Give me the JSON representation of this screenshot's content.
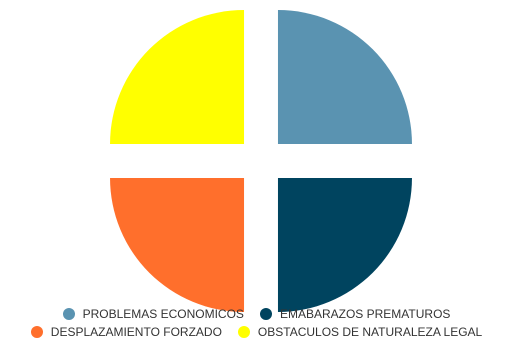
{
  "chart_data": {
    "type": "pie",
    "title": "",
    "categories": [
      "PROBLEMAS ECONOMICOS",
      "EMABARAZOS PREMATUROS",
      "DESPLAZAMIENTO FORZADO",
      "OBSTACULOS DE NATURALEZA LEGAL"
    ],
    "values": [
      25,
      25,
      25,
      25
    ],
    "colors": [
      "#5a93b1",
      "#00445f",
      "#ff6f2c",
      "#ffff00"
    ],
    "legend_position": "bottom"
  },
  "legend": {
    "items": [
      {
        "label": "PROBLEMAS ECONOMICOS",
        "color": "#5a93b1"
      },
      {
        "label": "EMABARAZOS PREMATUROS",
        "color": "#00445f"
      },
      {
        "label": "DESPLAZAMIENTO FORZADO",
        "color": "#ff6f2c"
      },
      {
        "label": "OBSTACULOS DE NATURALEZA LEGAL",
        "color": "#ffff00"
      }
    ]
  }
}
